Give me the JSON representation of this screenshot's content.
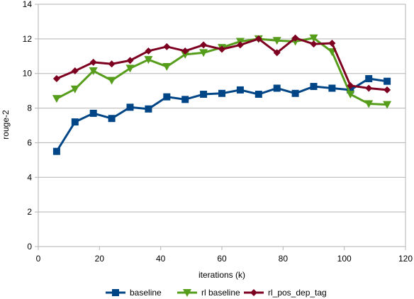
{
  "chart_data": {
    "type": "line",
    "title": "",
    "xlabel": "iterations (k)",
    "ylabel": "rouge-2",
    "xlim": [
      0,
      120
    ],
    "ylim": [
      0,
      14
    ],
    "xticks": [
      0,
      20,
      40,
      60,
      80,
      100,
      120
    ],
    "yticks": [
      0,
      2,
      4,
      6,
      8,
      10,
      12,
      14
    ],
    "grid": "horizontal",
    "legend": "bottom",
    "x": [
      6,
      12,
      18,
      24,
      30,
      36,
      42,
      48,
      54,
      60,
      66,
      72,
      78,
      84,
      90,
      96,
      102,
      108,
      114
    ],
    "series": [
      {
        "name": "baseline",
        "color": "#004586",
        "marker": "square",
        "values": [
          5.5,
          7.2,
          7.7,
          7.4,
          8.05,
          7.95,
          8.65,
          8.5,
          8.8,
          8.85,
          9.05,
          8.8,
          9.15,
          8.85,
          9.25,
          9.15,
          9.05,
          9.7,
          9.55
        ]
      },
      {
        "name": "rl baseline",
        "color": "#579d1c",
        "marker": "triangle-down",
        "values": [
          8.55,
          9.1,
          10.15,
          9.6,
          10.3,
          10.8,
          10.4,
          11.1,
          11.2,
          11.5,
          11.85,
          12.0,
          11.9,
          11.85,
          12.05,
          11.25,
          8.8,
          8.25,
          8.2
        ]
      },
      {
        "name": "rl_pos_dep_tag",
        "color": "#7e0021",
        "marker": "diamond",
        "values": [
          9.7,
          10.15,
          10.65,
          10.55,
          10.75,
          11.3,
          11.55,
          11.3,
          11.65,
          11.4,
          11.65,
          12.0,
          11.2,
          12.05,
          11.7,
          11.75,
          9.3,
          9.15,
          9.05
        ]
      }
    ]
  }
}
